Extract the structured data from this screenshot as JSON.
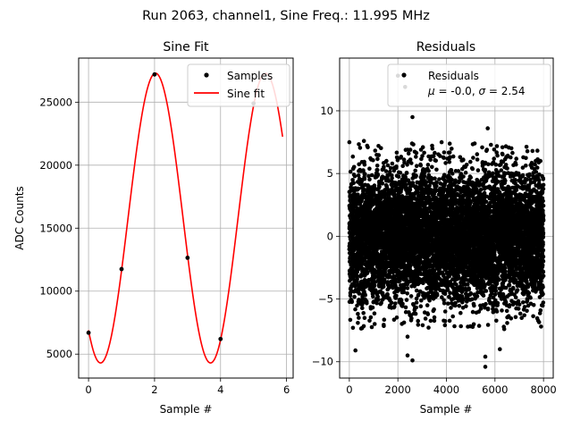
{
  "figure": {
    "suptitle": "Run 2063, channel1, Sine Freq.: 11.995 MHz"
  },
  "chart_data": [
    {
      "type": "line",
      "title": "Sine Fit",
      "xlabel": "Sample #",
      "ylabel": "ADC Counts",
      "xlim": [
        -0.3,
        6.2
      ],
      "ylim": [
        3100,
        28500
      ],
      "xticks": [
        0,
        2,
        4,
        6
      ],
      "yticks": [
        5000,
        10000,
        15000,
        20000,
        25000
      ],
      "grid": true,
      "legend_position": "top-right",
      "series": [
        {
          "name": "Samples",
          "style": "points",
          "color": "#000000",
          "x": [
            0,
            1,
            2,
            3,
            4,
            5
          ],
          "y": [
            6700,
            11750,
            27200,
            12650,
            6200,
            24900
          ]
        },
        {
          "name": "Sine fit",
          "style": "line",
          "color": "#ff0000",
          "model": {
            "offset": 15800,
            "amplitude": 11500,
            "period": 3.333,
            "peak_x": 2.03
          },
          "x_range": [
            0,
            5.88
          ]
        }
      ]
    },
    {
      "type": "scatter",
      "title": "Residuals",
      "xlabel": "Sample #",
      "xlim": [
        -400,
        8400
      ],
      "ylim": [
        -11.3,
        14.2
      ],
      "xticks": [
        0,
        2000,
        4000,
        6000,
        8000
      ],
      "yticks": [
        -10,
        -5,
        0,
        5,
        10
      ],
      "grid": true,
      "legend_position": "top-right",
      "legend": {
        "label": "Residuals",
        "stats": "μ = -0.0, σ = 2.54"
      },
      "series": [
        {
          "name": "Residuals",
          "color": "#000000",
          "n_points": 8000,
          "mean": 0.0,
          "std": 2.54,
          "outliers": [
            [
              2000,
              12.8
            ],
            [
              2300,
              11.9
            ],
            [
              2600,
              9.5
            ],
            [
              5700,
              8.6
            ],
            [
              5600,
              -10.4
            ],
            [
              5600,
              -9.6
            ],
            [
              2600,
              -9.9
            ],
            [
              2400,
              -9.5
            ],
            [
              6200,
              -9.0
            ],
            [
              250,
              -9.1
            ],
            [
              2400,
              -8.0
            ],
            [
              7900,
              -7.2
            ],
            [
              150,
              -7.3
            ],
            [
              3800,
              7.5
            ],
            [
              600,
              7.6
            ],
            [
              0,
              7.5
            ],
            [
              1200,
              7.2
            ]
          ]
        }
      ]
    }
  ]
}
